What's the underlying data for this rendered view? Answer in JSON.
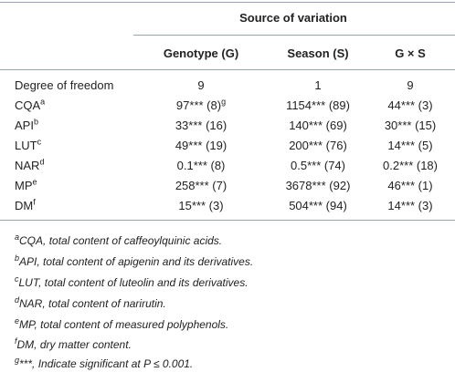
{
  "header": {
    "group_title": "Source of variation",
    "columns": [
      "Genotype (G)",
      "Season (S)",
      "G × S"
    ]
  },
  "rows": [
    {
      "label": "Degree of freedom",
      "sup": "",
      "values": [
        {
          "v": "9",
          "n": ""
        },
        {
          "v": "1",
          "n": ""
        },
        {
          "v": "9",
          "n": ""
        }
      ]
    },
    {
      "label": "CQA",
      "sup": "a",
      "values": [
        {
          "v": "97***",
          "n": " (8)",
          "g": "g"
        },
        {
          "v": "1154***",
          "n": " (89)"
        },
        {
          "v": "44***",
          "n": " (3)"
        }
      ]
    },
    {
      "label": "API",
      "sup": "b",
      "values": [
        {
          "v": "33***",
          "n": " (16)"
        },
        {
          "v": "140***",
          "n": " (69)"
        },
        {
          "v": "30***",
          "n": " (15)"
        }
      ]
    },
    {
      "label": "LUT",
      "sup": "c",
      "values": [
        {
          "v": "49***",
          "n": " (19)"
        },
        {
          "v": "200***",
          "n": " (76)"
        },
        {
          "v": "14***",
          "n": " (5)"
        }
      ]
    },
    {
      "label": "NAR",
      "sup": "d",
      "values": [
        {
          "v": "0.1***",
          "n": " (8)"
        },
        {
          "v": "0.5***",
          "n": " (74)"
        },
        {
          "v": "0.2***",
          "n": " (18)"
        }
      ]
    },
    {
      "label": "MP",
      "sup": "e",
      "values": [
        {
          "v": "258***",
          "n": " (7)"
        },
        {
          "v": "3678***",
          "n": " (92)"
        },
        {
          "v": "46***",
          "n": " (1)"
        }
      ]
    },
    {
      "label": "DM",
      "sup": "f",
      "values": [
        {
          "v": "15***",
          "n": " (3)"
        },
        {
          "v": "504***",
          "n": " (94)"
        },
        {
          "v": "14***",
          "n": " (3)"
        }
      ]
    }
  ],
  "footnotes": [
    {
      "mark": "a",
      "text": "CQA, total content of caffeoylquinic acids."
    },
    {
      "mark": "b",
      "text": "API, total content of apigenin and its derivatives."
    },
    {
      "mark": "c",
      "text": "LUT, total content of luteolin and its derivatives."
    },
    {
      "mark": "d",
      "text": "NAR, total content of narirutin."
    },
    {
      "mark": "e",
      "text": "MP, total content of measured polyphenols."
    },
    {
      "mark": "f",
      "text": "DM, dry matter content."
    },
    {
      "mark": "g",
      "text": "***, Indicate significant at P ≤ 0.001."
    }
  ],
  "colors": {
    "rule": "#9aa3b2",
    "text": "#222222"
  }
}
